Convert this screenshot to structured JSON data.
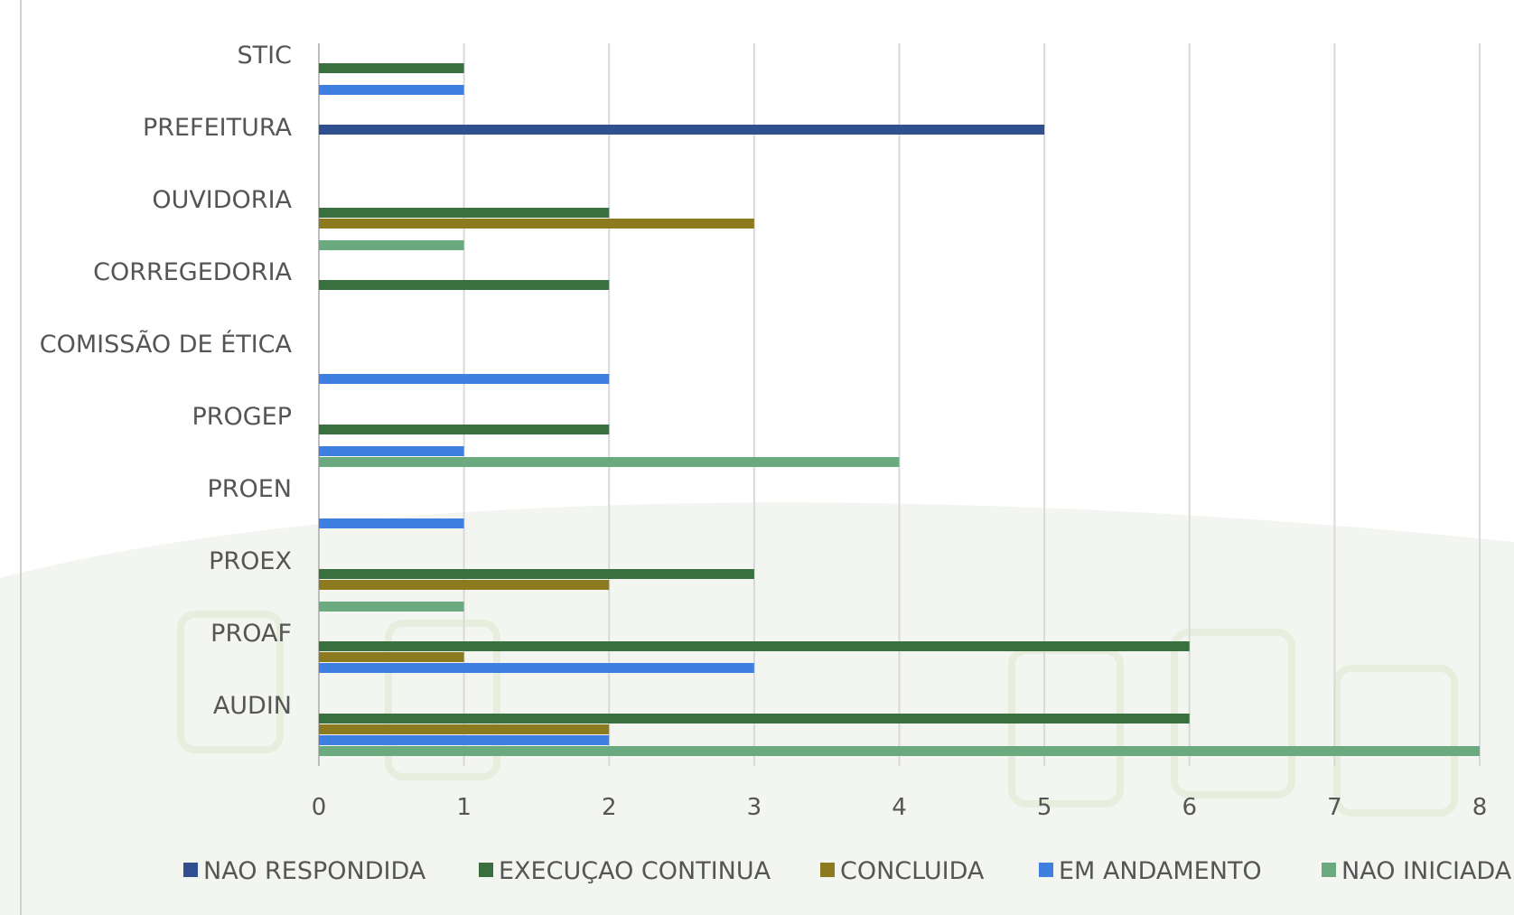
{
  "chart_data": {
    "type": "bar",
    "orientation": "horizontal",
    "categories": [
      "STIC",
      "PREFEITURA",
      "OUVIDORIA",
      "CORREGEDORIA",
      "COMISSÃO DE ÉTICA",
      "PROGEP",
      "PROEN",
      "PROEX",
      "PROAF",
      "AUDIN"
    ],
    "series": [
      {
        "name": "NAO RESPONDIDA",
        "color": "#2f4f8f",
        "values": [
          0,
          5,
          0,
          0,
          0,
          0,
          0,
          0,
          0,
          0
        ]
      },
      {
        "name": "EXECUÇAO CONTINUA",
        "color": "#3a7040",
        "values": [
          1,
          0,
          2,
          2,
          0,
          2,
          0,
          3,
          6,
          6
        ]
      },
      {
        "name": "CONCLUIDA",
        "color": "#8c7a1e",
        "values": [
          0,
          0,
          3,
          0,
          0,
          0,
          0,
          2,
          1,
          2
        ]
      },
      {
        "name": "EM ANDAMENTO",
        "color": "#3f7fe0",
        "values": [
          1,
          0,
          0,
          0,
          2,
          1,
          1,
          0,
          3,
          2
        ]
      },
      {
        "name": "NAO INICIADA",
        "color": "#6aaa7e",
        "values": [
          0,
          0,
          1,
          0,
          0,
          4,
          0,
          1,
          0,
          8
        ]
      }
    ],
    "xlim": [
      0,
      8
    ],
    "xticks": [
      "0",
      "1",
      "2",
      "3",
      "4",
      "5",
      "6",
      "7",
      "8"
    ],
    "grid": true,
    "legend": "bottom"
  }
}
